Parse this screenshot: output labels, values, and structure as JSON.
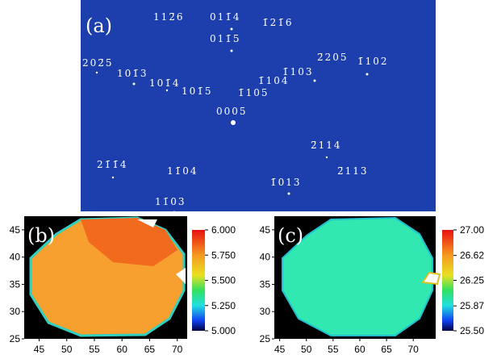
{
  "panels": {
    "a": {
      "label": "(a)",
      "spots": [
        "112̄6",
        "011̄4",
        "1̄21̄6",
        "011̄5",
        "202̄5",
        "101̄3",
        "101̄4",
        "101̄5",
        "1̄104",
        "1̄105",
        "1̄103",
        "2̄205",
        "1̄102",
        "0005",
        "2̄114",
        "21̄1̄4",
        "11̄04",
        "2̄113",
        "1̄013",
        "11̄03"
      ]
    },
    "b": {
      "label": "(b)",
      "xlim": [
        42.3,
        71.8
      ],
      "ylim": [
        25,
        47.5
      ],
      "xticks": [
        45,
        50,
        55,
        60,
        65,
        70
      ],
      "yticks": [
        25,
        30,
        35,
        40,
        45
      ],
      "colorbar": {
        "lim": [
          5,
          6
        ],
        "ticks": [
          {
            "value": 6,
            "label": "6.000"
          },
          {
            "value": 5.75,
            "label": "5.750"
          },
          {
            "value": 5.5,
            "label": "5.500"
          },
          {
            "value": 5.25,
            "label": "5.250"
          },
          {
            "value": 5,
            "label": "5.000"
          }
        ]
      }
    },
    "c": {
      "label": "(c)",
      "xlim": [
        44,
        74.2
      ],
      "ylim": [
        25,
        47.5
      ],
      "xticks": [
        45,
        50,
        55,
        60,
        65,
        70
      ],
      "yticks": [
        25,
        30,
        35,
        40,
        45
      ],
      "colorbar": {
        "lim": [
          25.5,
          27
        ],
        "ticks": [
          {
            "value": 27,
            "label": "27.00"
          },
          {
            "value": 26.62,
            "label": "26.62"
          },
          {
            "value": 26.25,
            "label": "26.25"
          },
          {
            "value": 25.87,
            "label": "25.87"
          },
          {
            "value": 25.5,
            "label": "25.50"
          }
        ]
      }
    }
  }
}
